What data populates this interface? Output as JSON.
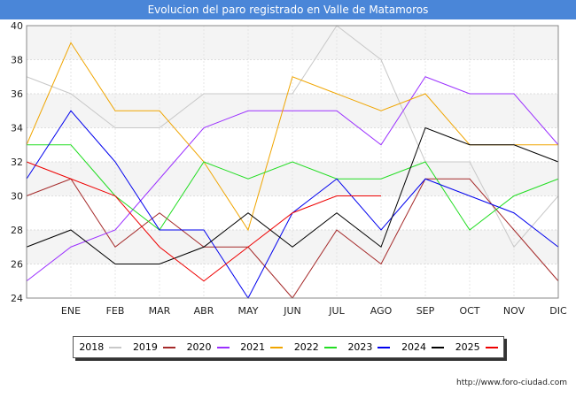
{
  "title": "Evolucion del paro registrado en Valle de Matamoros",
  "source": "http://www.foro-ciudad.com",
  "chart_data": {
    "type": "line",
    "categories": [
      "",
      "ENE",
      "FEB",
      "MAR",
      "ABR",
      "MAY",
      "JUN",
      "JUL",
      "AGO",
      "SEP",
      "OCT",
      "NOV",
      "DIC"
    ],
    "ylim": [
      24,
      40
    ],
    "yticks": [
      24,
      26,
      28,
      30,
      32,
      34,
      36,
      38,
      40
    ],
    "series": [
      {
        "name": "2018",
        "color": "#c8c8c8",
        "values": [
          37,
          36,
          34,
          34,
          36,
          36,
          36,
          40,
          38,
          32,
          32,
          27,
          30
        ]
      },
      {
        "name": "2019",
        "color": "#a52a2a",
        "values": [
          30,
          31,
          27,
          29,
          27,
          27,
          24,
          28,
          26,
          31,
          31,
          28,
          25
        ]
      },
      {
        "name": "2020",
        "color": "#9b30ff",
        "values": [
          25,
          27,
          28,
          31,
          34,
          35,
          35,
          35,
          33,
          37,
          36,
          36,
          33
        ]
      },
      {
        "name": "2021",
        "color": "#f0a500",
        "values": [
          33,
          39,
          35,
          35,
          32,
          28,
          37,
          36,
          35,
          36,
          33,
          33,
          33
        ]
      },
      {
        "name": "2022",
        "color": "#22dd22",
        "values": [
          33,
          33,
          30,
          28,
          32,
          31,
          32,
          31,
          31,
          32,
          28,
          30,
          31
        ]
      },
      {
        "name": "2023",
        "color": "#0000ee",
        "values": [
          31,
          35,
          32,
          28,
          28,
          24,
          29,
          31,
          28,
          31,
          30,
          29,
          27
        ]
      },
      {
        "name": "2024",
        "color": "#000000",
        "values": [
          27,
          28,
          26,
          26,
          27,
          29,
          27,
          29,
          27,
          34,
          33,
          33,
          32
        ]
      },
      {
        "name": "2025",
        "color": "#ee0000",
        "values": [
          32,
          31,
          30,
          27,
          25,
          27,
          29,
          30,
          30,
          null,
          null,
          null,
          null
        ]
      }
    ]
  }
}
